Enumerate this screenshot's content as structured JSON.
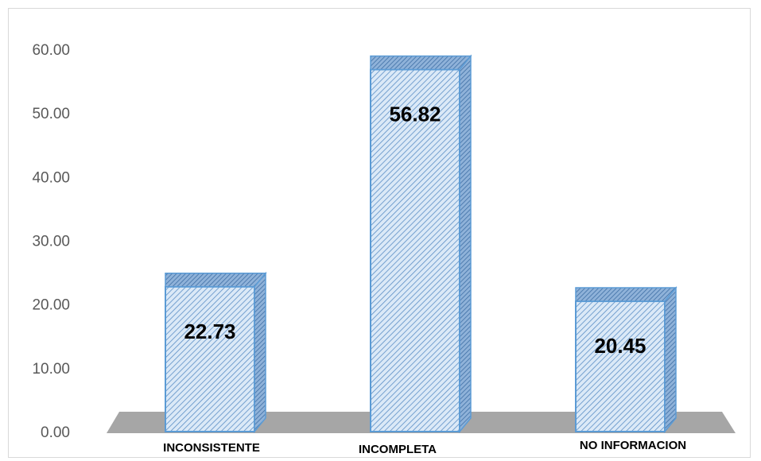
{
  "chart_data": {
    "type": "bar",
    "title": "",
    "xlabel": "",
    "ylabel": "",
    "categories": [
      "INCONSISTENTE",
      "INCOMPLETA",
      "NO INFORMACION"
    ],
    "values": [
      22.73,
      56.82,
      20.45
    ],
    "data_labels": [
      "22.73",
      "56.82",
      "20.45"
    ],
    "ylim": [
      0,
      60
    ],
    "yticks": [
      "0.00",
      "10.00",
      "20.00",
      "30.00",
      "40.00",
      "50.00",
      "60.00"
    ],
    "grid": false,
    "legend": "none",
    "style": "3d-column-hatched",
    "colors": {
      "bar_fill": "#dbe9f7",
      "bar_edge": "#5b9bd5",
      "hatch": "#5b8ec6",
      "floor": "#a6a6a6"
    }
  }
}
